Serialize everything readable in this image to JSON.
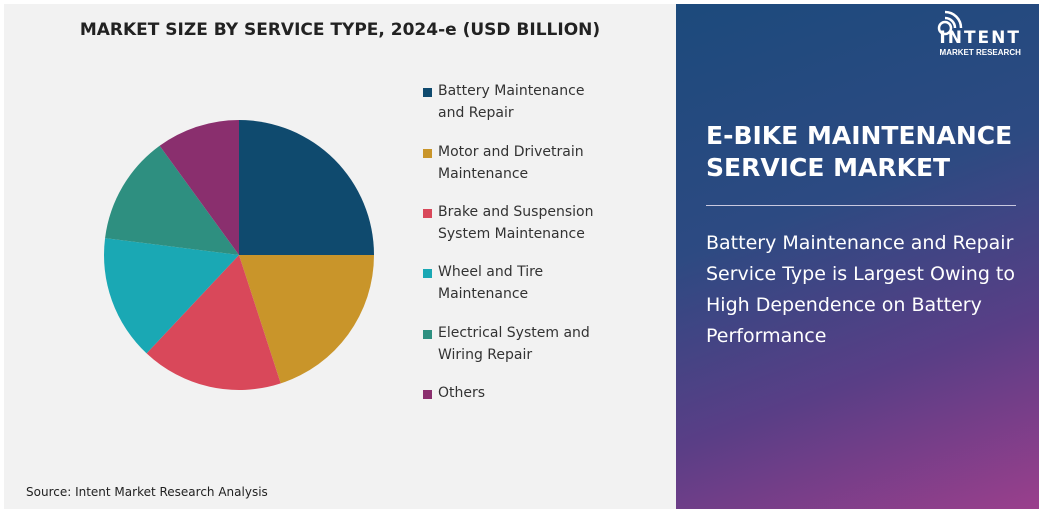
{
  "chart_data": {
    "type": "pie",
    "title": "MARKET SIZE BY SERVICE TYPE, 2024-e (USD BILLION)",
    "categories": [
      "Battery Maintenance and Repair",
      "Motor and Drivetrain Maintenance",
      "Brake and Suspension System Maintenance",
      "Wheel and Tire Maintenance",
      "Electrical System and Wiring Repair",
      "Others"
    ],
    "values": [
      25,
      20,
      17,
      15,
      13,
      10
    ],
    "colors": [
      "#0f4a6e",
      "#c9952a",
      "#d9485a",
      "#1aa8b4",
      "#2e8f80",
      "#8a2f6e"
    ],
    "legend_position": "right"
  },
  "legend_lines": [
    [
      "Battery Maintenance",
      "and Repair"
    ],
    [
      "Motor and Drivetrain",
      "Maintenance"
    ],
    [
      "Brake and Suspension",
      "System Maintenance"
    ],
    [
      "Wheel and Tire",
      "Maintenance"
    ],
    [
      "Electrical System and",
      "Wiring Repair"
    ],
    [
      "Others"
    ]
  ],
  "source": "Source: Intent Market Research Analysis",
  "logo": {
    "name": "INTENT",
    "sub": "MARKET RESEARCH"
  },
  "panel": {
    "heading_lines": [
      "E-BIKE MAINTENANCE",
      "SERVICE MARKET"
    ],
    "insight": "Battery Maintenance and Repair Service Type is Largest Owing to High Dependence on Battery Performance"
  }
}
